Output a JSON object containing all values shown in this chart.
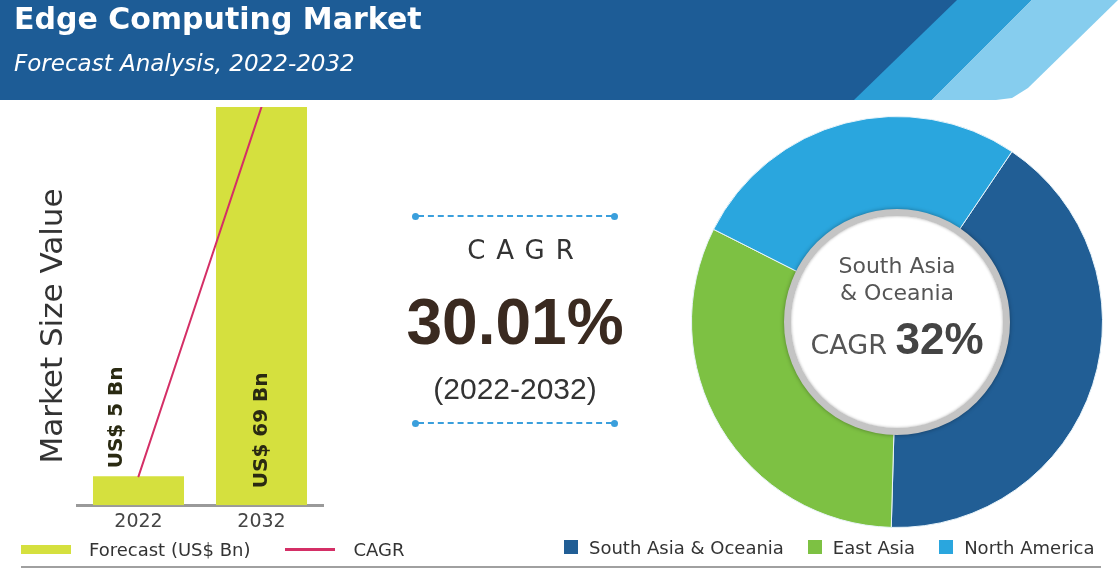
{
  "chart_data": [
    {
      "type": "bar",
      "title": "Edge Computing Market",
      "subtitle": "Forecast Analysis, 2022-2032",
      "ylabel": "Market Size Value",
      "categories": [
        "2022",
        "2032"
      ],
      "series": [
        {
          "name": "Forecast (US$ Bn)",
          "color": "#d5e03e",
          "values": [
            5,
            69
          ],
          "value_labels": [
            "US$ 5 Bn",
            "US$ 69 Bn"
          ]
        },
        {
          "name": "CAGR",
          "type": "line",
          "color": "#d42f66",
          "values": [
            5,
            69
          ]
        }
      ],
      "legend": "bottom",
      "tick_labels": "x"
    },
    {
      "type": "other",
      "annotations": [
        "CAGR",
        "30.01%",
        "(2022-2032)"
      ]
    },
    {
      "type": "donut",
      "categories": [
        "South Asia & Oceania",
        "East Asia",
        "North America"
      ],
      "values": [
        41,
        32,
        27
      ],
      "colors": [
        "#215e95",
        "#7dc143",
        "#2aa6de"
      ],
      "annotations": [
        "South Asia & Oceania",
        "CAGR 32%"
      ],
      "legend": "bottom"
    }
  ]
}
